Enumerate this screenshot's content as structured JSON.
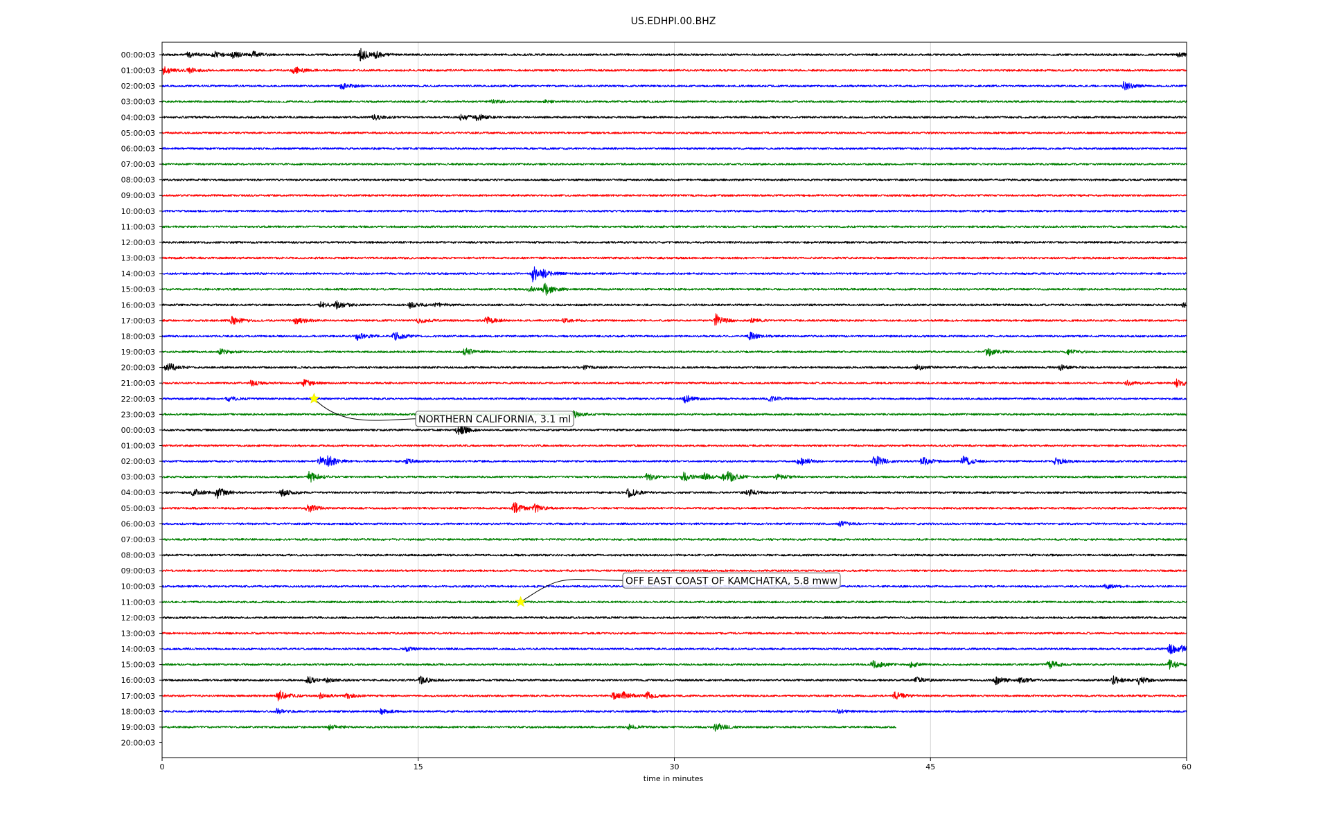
{
  "chart_data": {
    "type": "line",
    "title": "US.EDHPI.00.BHZ",
    "xlabel": "time in minutes",
    "ylabel": "",
    "xlim": [
      0,
      60
    ],
    "x_ticks": [
      "0",
      "15",
      "30",
      "45",
      "60"
    ],
    "x_tick_values": [
      0,
      15,
      30,
      45,
      60
    ],
    "grid": "vertical",
    "trace_colors": [
      "#000000",
      "#ff0000",
      "#0000ff",
      "#008000"
    ],
    "row_labels": [
      "00:00:03",
      "01:00:03",
      "02:00:03",
      "03:00:03",
      "04:00:03",
      "05:00:03",
      "06:00:03",
      "07:00:03",
      "08:00:03",
      "09:00:03",
      "10:00:03",
      "11:00:03",
      "12:00:03",
      "13:00:03",
      "14:00:03",
      "15:00:03",
      "16:00:03",
      "17:00:03",
      "18:00:03",
      "19:00:03",
      "20:00:03",
      "21:00:03",
      "22:00:03",
      "23:00:03",
      "00:00:03",
      "01:00:03",
      "02:00:03",
      "03:00:03",
      "04:00:03",
      "05:00:03",
      "06:00:03",
      "07:00:03",
      "08:00:03",
      "09:00:03",
      "10:00:03",
      "11:00:03",
      "12:00:03",
      "13:00:03",
      "14:00:03",
      "15:00:03",
      "16:00:03",
      "17:00:03",
      "18:00:03",
      "19:00:03",
      "20:00:03"
    ],
    "last_trace_end_minutes": 43,
    "events": [
      [
        0,
        1.5,
        0.5
      ],
      [
        0,
        3.0,
        0.5
      ],
      [
        0,
        4.1,
        0.6
      ],
      [
        0,
        5.3,
        0.5
      ],
      [
        0,
        11.6,
        1.0
      ],
      [
        0,
        12.4,
        0.6
      ],
      [
        0,
        59.5,
        0.3
      ],
      [
        1,
        0.1,
        0.6
      ],
      [
        1,
        1.5,
        0.5
      ],
      [
        1,
        7.7,
        0.6
      ],
      [
        2,
        10.5,
        0.6
      ],
      [
        2,
        56.3,
        0.7
      ],
      [
        3,
        19.3,
        0.3
      ],
      [
        3,
        22.4,
        0.2
      ],
      [
        4,
        12.4,
        0.4
      ],
      [
        4,
        17.5,
        0.5
      ],
      [
        4,
        18.4,
        0.6
      ],
      [
        14,
        21.7,
        1.2
      ],
      [
        14,
        22.3,
        0.6
      ],
      [
        15,
        22.4,
        1.0
      ],
      [
        15,
        21.5,
        0.5
      ],
      [
        16,
        9.3,
        0.5
      ],
      [
        16,
        10.2,
        0.6
      ],
      [
        16,
        14.5,
        0.5
      ],
      [
        16,
        16.0,
        0.4
      ],
      [
        16,
        59.8,
        0.4
      ],
      [
        17,
        4.1,
        0.7
      ],
      [
        17,
        7.8,
        0.6
      ],
      [
        17,
        15.0,
        0.4
      ],
      [
        17,
        19.0,
        0.6
      ],
      [
        17,
        23.5,
        0.3
      ],
      [
        17,
        32.4,
        1.0
      ],
      [
        17,
        34.5,
        0.3
      ],
      [
        18,
        11.4,
        0.6
      ],
      [
        18,
        13.6,
        0.7
      ],
      [
        18,
        34.4,
        0.6
      ],
      [
        19,
        3.4,
        0.4
      ],
      [
        19,
        17.7,
        0.6
      ],
      [
        19,
        48.3,
        0.7
      ],
      [
        19,
        53.0,
        0.4
      ],
      [
        20,
        0.2,
        1.0
      ],
      [
        20,
        24.7,
        0.3
      ],
      [
        20,
        44.2,
        0.4
      ],
      [
        20,
        52.6,
        0.4
      ],
      [
        21,
        5.2,
        0.4
      ],
      [
        21,
        8.3,
        0.5
      ],
      [
        21,
        56.5,
        0.5
      ],
      [
        21,
        59.4,
        0.6
      ],
      [
        22,
        3.8,
        0.4
      ],
      [
        22,
        30.6,
        0.6
      ],
      [
        22,
        35.6,
        0.5
      ],
      [
        23,
        24.1,
        0.5
      ],
      [
        24,
        17.3,
        1.0
      ],
      [
        26,
        9.2,
        0.8
      ],
      [
        26,
        9.7,
        1.0
      ],
      [
        26,
        14.3,
        0.3
      ],
      [
        26,
        37.3,
        0.8
      ],
      [
        26,
        41.7,
        1.0
      ],
      [
        26,
        44.5,
        0.7
      ],
      [
        26,
        46.9,
        0.8
      ],
      [
        26,
        52.3,
        0.6
      ],
      [
        27,
        8.6,
        0.9
      ],
      [
        27,
        28.4,
        0.6
      ],
      [
        27,
        30.5,
        0.7
      ],
      [
        27,
        31.7,
        0.6
      ],
      [
        27,
        32.8,
        0.5
      ],
      [
        27,
        33.1,
        1.0
      ],
      [
        27,
        36.0,
        0.5
      ],
      [
        28,
        1.8,
        0.6
      ],
      [
        28,
        3.2,
        1.0
      ],
      [
        28,
        7.0,
        0.6
      ],
      [
        28,
        27.3,
        0.7
      ],
      [
        28,
        34.3,
        0.5
      ],
      [
        29,
        8.5,
        0.7
      ],
      [
        29,
        20.6,
        1.0
      ],
      [
        29,
        21.8,
        0.7
      ],
      [
        30,
        39.7,
        0.4
      ],
      [
        34,
        55.2,
        0.4
      ],
      [
        38,
        14.3,
        0.3
      ],
      [
        38,
        59.0,
        1.0
      ],
      [
        38,
        59.6,
        0.6
      ],
      [
        39,
        41.6,
        0.8
      ],
      [
        39,
        43.8,
        0.4
      ],
      [
        39,
        51.9,
        0.7
      ],
      [
        39,
        59.0,
        0.7
      ],
      [
        40,
        8.5,
        0.6
      ],
      [
        40,
        9.6,
        0.4
      ],
      [
        40,
        15.1,
        0.6
      ],
      [
        40,
        44.1,
        0.5
      ],
      [
        40,
        48.8,
        0.7
      ],
      [
        40,
        50.2,
        0.5
      ],
      [
        40,
        55.7,
        0.6
      ],
      [
        40,
        57.2,
        0.6
      ],
      [
        41,
        6.8,
        0.9
      ],
      [
        41,
        9.2,
        0.4
      ],
      [
        41,
        10.8,
        0.4
      ],
      [
        41,
        26.4,
        0.5
      ],
      [
        41,
        27.0,
        0.6
      ],
      [
        41,
        28.4,
        0.6
      ],
      [
        41,
        42.9,
        0.7
      ],
      [
        42,
        6.7,
        0.4
      ],
      [
        42,
        12.8,
        0.4
      ],
      [
        42,
        39.6,
        0.3
      ],
      [
        43,
        9.8,
        0.4
      ],
      [
        43,
        27.3,
        0.4
      ],
      [
        43,
        32.4,
        0.7
      ]
    ],
    "annotations": [
      {
        "text": "NORTHERN CALIFORNIA, 3.1 ml",
        "row": 22,
        "x": 8.9
      },
      {
        "text": "OFF EAST COAST OF KAMCHATKA, 5.8 mww",
        "row": 35,
        "x": 21.0
      }
    ]
  }
}
